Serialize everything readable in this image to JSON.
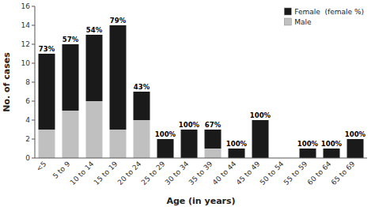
{
  "chart_data": {
    "type": "bar",
    "stacked": true,
    "categories": [
      "<5",
      "5 to 9",
      "10 to 14",
      "15 to 19",
      "20 to 24",
      "25 to 29",
      "30 to 34",
      "35 to 39",
      "40 to 44",
      "45 to 49",
      "50 to 54",
      "55 to 59",
      "60 to 64",
      "65 to 69"
    ],
    "series": [
      {
        "name": "Male",
        "color": "#c0c0c0",
        "values": [
          3,
          5,
          6,
          3,
          4,
          0,
          0,
          1,
          0,
          0,
          0,
          0,
          0,
          0
        ]
      },
      {
        "name": "Female  (female %)",
        "color": "#1a1a1a",
        "values": [
          8,
          7,
          7,
          11,
          3,
          2,
          3,
          2,
          1,
          4,
          0,
          1,
          1,
          2
        ]
      }
    ],
    "annotations": [
      {
        "x": "<5",
        "text": "73%"
      },
      {
        "x": "5 to 9",
        "text": "57%"
      },
      {
        "x": "10 to 14",
        "text": "54%"
      },
      {
        "x": "15 to 19",
        "text": "79%"
      },
      {
        "x": "20 to 24",
        "text": "43%"
      },
      {
        "x": "25 to 29",
        "text": "100%"
      },
      {
        "x": "30 to 34",
        "text": "100%"
      },
      {
        "x": "35 to 39",
        "text": "67%"
      },
      {
        "x": "40 to 44",
        "text": "100%"
      },
      {
        "x": "45 to 49",
        "text": "100%"
      },
      {
        "x": "55 to 59",
        "text": "100%"
      },
      {
        "x": "60 to 64",
        "text": "100%"
      },
      {
        "x": "65 to 69",
        "text": "100%"
      }
    ],
    "xlabel": "Age (in years)",
    "ylabel": "No. of cases",
    "ylim": [
      0,
      16
    ],
    "yticks": [
      0,
      2,
      4,
      6,
      8,
      10,
      12,
      14,
      16
    ],
    "legend": "upper right"
  }
}
